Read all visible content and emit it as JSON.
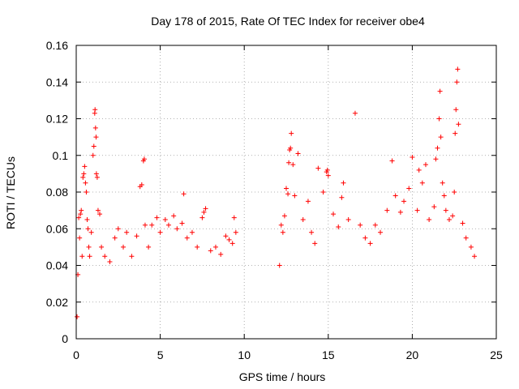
{
  "chart_data": {
    "type": "scatter",
    "title": "Day 178 of 2015, Rate Of TEC Index for receiver obe4",
    "xlabel": "GPS time / hours",
    "ylabel": "ROTI / TECUs",
    "xlim": [
      0,
      25
    ],
    "ylim": [
      0,
      0.16
    ],
    "x_ticks": [
      0,
      5,
      10,
      15,
      20,
      25
    ],
    "x_tick_labels": [
      "0",
      "5",
      "10",
      "15",
      "20",
      "25"
    ],
    "y_ticks": [
      0,
      0.02,
      0.04,
      0.06,
      0.08,
      0.1,
      0.12,
      0.14,
      0.16
    ],
    "y_tick_labels": [
      "0",
      "0.02",
      "0.04",
      "0.06",
      "0.08",
      "0.1",
      "0.12",
      "0.14",
      "0.16"
    ],
    "grid": true,
    "marker": "+",
    "marker_color": "#ff0000",
    "data_gap_hours": [
      9.6,
      12.1
    ],
    "series": [
      {
        "points": [
          [
            0.05,
            0.012
          ],
          [
            0.1,
            0.035
          ],
          [
            0.15,
            0.066
          ],
          [
            0.2,
            0.055
          ],
          [
            0.25,
            0.068
          ],
          [
            0.3,
            0.07
          ],
          [
            0.35,
            0.045
          ],
          [
            0.4,
            0.088
          ],
          [
            0.45,
            0.09
          ],
          [
            0.5,
            0.094
          ],
          [
            0.55,
            0.085
          ],
          [
            0.6,
            0.08
          ],
          [
            0.65,
            0.065
          ],
          [
            0.7,
            0.06
          ],
          [
            0.75,
            0.05
          ],
          [
            0.8,
            0.045
          ],
          [
            0.9,
            0.058
          ],
          [
            1.0,
            0.1
          ],
          [
            1.05,
            0.105
          ],
          [
            1.1,
            0.123
          ],
          [
            1.12,
            0.125
          ],
          [
            1.15,
            0.115
          ],
          [
            1.18,
            0.11
          ],
          [
            1.2,
            0.09
          ],
          [
            1.25,
            0.088
          ],
          [
            1.3,
            0.07
          ],
          [
            1.4,
            0.068
          ],
          [
            1.5,
            0.05
          ],
          [
            1.7,
            0.045
          ],
          [
            2.0,
            0.042
          ],
          [
            2.3,
            0.055
          ],
          [
            2.5,
            0.06
          ],
          [
            2.8,
            0.05
          ],
          [
            3.0,
            0.058
          ],
          [
            3.3,
            0.045
          ],
          [
            3.6,
            0.056
          ],
          [
            3.8,
            0.083
          ],
          [
            3.9,
            0.084
          ],
          [
            4.0,
            0.097
          ],
          [
            4.05,
            0.098
          ],
          [
            4.1,
            0.062
          ],
          [
            4.3,
            0.05
          ],
          [
            4.5,
            0.062
          ],
          [
            4.8,
            0.066
          ],
          [
            5.0,
            0.058
          ],
          [
            5.3,
            0.065
          ],
          [
            5.5,
            0.062
          ],
          [
            5.8,
            0.067
          ],
          [
            6.0,
            0.06
          ],
          [
            6.3,
            0.063
          ],
          [
            6.4,
            0.079
          ],
          [
            6.6,
            0.055
          ],
          [
            6.9,
            0.058
          ],
          [
            7.2,
            0.05
          ],
          [
            7.5,
            0.066
          ],
          [
            7.6,
            0.069
          ],
          [
            7.7,
            0.071
          ],
          [
            8.0,
            0.048
          ],
          [
            8.3,
            0.05
          ],
          [
            8.6,
            0.046
          ],
          [
            8.9,
            0.056
          ],
          [
            9.1,
            0.054
          ],
          [
            9.3,
            0.052
          ],
          [
            9.4,
            0.066
          ],
          [
            9.5,
            0.058
          ],
          [
            12.1,
            0.04
          ],
          [
            12.2,
            0.062
          ],
          [
            12.3,
            0.058
          ],
          [
            12.4,
            0.067
          ],
          [
            12.5,
            0.082
          ],
          [
            12.6,
            0.079
          ],
          [
            12.65,
            0.096
          ],
          [
            12.7,
            0.103
          ],
          [
            12.75,
            0.104
          ],
          [
            12.8,
            0.112
          ],
          [
            12.9,
            0.095
          ],
          [
            13.0,
            0.078
          ],
          [
            13.2,
            0.101
          ],
          [
            13.5,
            0.065
          ],
          [
            13.8,
            0.075
          ],
          [
            14.0,
            0.058
          ],
          [
            14.2,
            0.052
          ],
          [
            14.4,
            0.093
          ],
          [
            14.7,
            0.08
          ],
          [
            14.9,
            0.091
          ],
          [
            14.95,
            0.092
          ],
          [
            15.0,
            0.089
          ],
          [
            15.3,
            0.068
          ],
          [
            15.6,
            0.061
          ],
          [
            15.8,
            0.077
          ],
          [
            15.9,
            0.085
          ],
          [
            16.2,
            0.065
          ],
          [
            16.6,
            0.123
          ],
          [
            16.9,
            0.062
          ],
          [
            17.2,
            0.055
          ],
          [
            17.5,
            0.052
          ],
          [
            17.8,
            0.062
          ],
          [
            18.1,
            0.058
          ],
          [
            18.5,
            0.07
          ],
          [
            18.8,
            0.097
          ],
          [
            19.0,
            0.078
          ],
          [
            19.3,
            0.069
          ],
          [
            19.5,
            0.075
          ],
          [
            19.8,
            0.082
          ],
          [
            20.0,
            0.099
          ],
          [
            20.3,
            0.07
          ],
          [
            20.4,
            0.092
          ],
          [
            20.6,
            0.085
          ],
          [
            20.8,
            0.095
          ],
          [
            21.0,
            0.065
          ],
          [
            21.3,
            0.072
          ],
          [
            21.4,
            0.098
          ],
          [
            21.5,
            0.104
          ],
          [
            21.6,
            0.12
          ],
          [
            21.65,
            0.135
          ],
          [
            21.7,
            0.11
          ],
          [
            21.8,
            0.085
          ],
          [
            21.9,
            0.078
          ],
          [
            22.0,
            0.07
          ],
          [
            22.2,
            0.065
          ],
          [
            22.4,
            0.067
          ],
          [
            22.5,
            0.08
          ],
          [
            22.55,
            0.112
          ],
          [
            22.6,
            0.125
          ],
          [
            22.65,
            0.14
          ],
          [
            22.7,
            0.147
          ],
          [
            22.75,
            0.117
          ],
          [
            23.0,
            0.063
          ],
          [
            23.2,
            0.055
          ],
          [
            23.5,
            0.05
          ],
          [
            23.7,
            0.045
          ]
        ]
      }
    ]
  }
}
